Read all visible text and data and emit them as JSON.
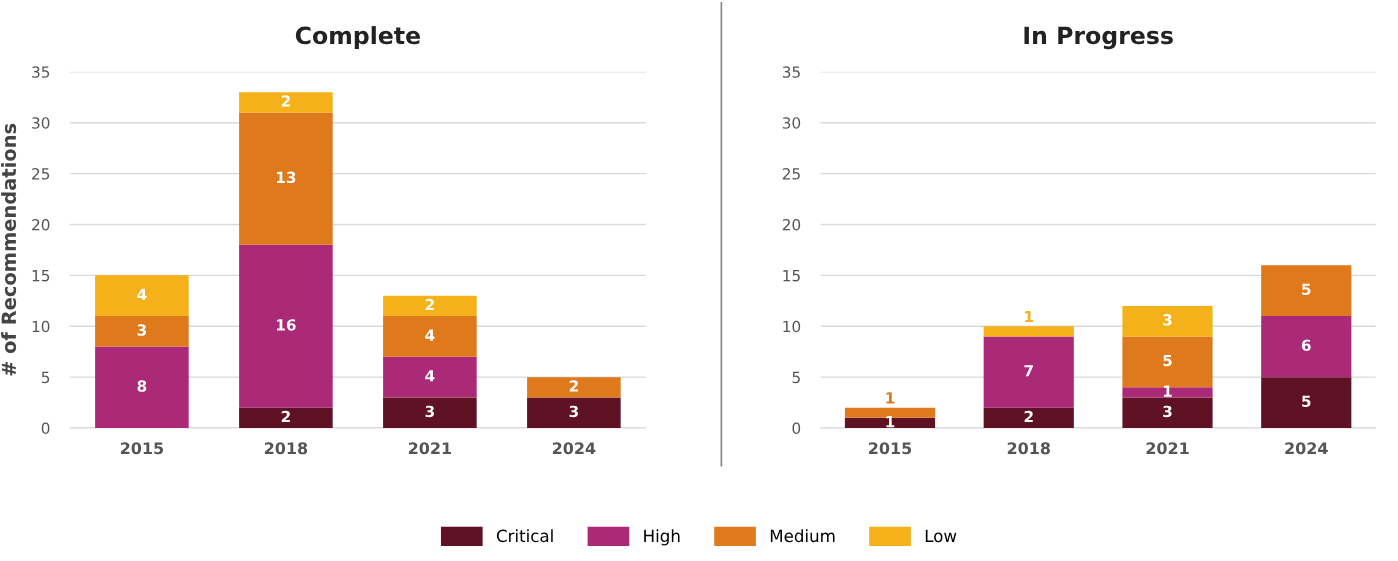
{
  "chart_data": [
    {
      "type": "bar",
      "stacked": true,
      "title": "Complete",
      "ylabel": "# of Recommendations",
      "categories": [
        "2015",
        "2018",
        "2021",
        "2024"
      ],
      "ylim": [
        0,
        35
      ],
      "yticks": [
        0,
        5,
        10,
        15,
        20,
        25,
        30,
        35
      ],
      "grid": "y",
      "data_labels": true,
      "legend": "bottom",
      "series": [
        {
          "name": "Critical",
          "color": "#5e1224",
          "values": [
            null,
            2,
            3,
            3
          ]
        },
        {
          "name": "High",
          "color": "#ab2a78",
          "values": [
            8,
            16,
            4,
            null
          ]
        },
        {
          "name": "Medium",
          "color": "#de7a1c",
          "values": [
            3,
            13,
            4,
            2
          ]
        },
        {
          "name": "Low",
          "color": "#f5b11a",
          "values": [
            4,
            2,
            2,
            null
          ]
        }
      ]
    },
    {
      "type": "bar",
      "stacked": true,
      "title": "In Progress",
      "categories": [
        "2015",
        "2018",
        "2021",
        "2024"
      ],
      "ylim": [
        0,
        35
      ],
      "yticks": [
        0,
        5,
        10,
        15,
        20,
        25,
        30,
        35
      ],
      "grid": "y",
      "data_labels": true,
      "legend": "bottom",
      "series": [
        {
          "name": "Critical",
          "color": "#5e1224",
          "values": [
            1,
            2,
            3,
            5
          ]
        },
        {
          "name": "High",
          "color": "#ab2a78",
          "values": [
            null,
            7,
            1,
            6
          ]
        },
        {
          "name": "Medium",
          "color": "#de7a1c",
          "values": [
            1,
            null,
            5,
            5
          ]
        },
        {
          "name": "Low",
          "color": "#f5b11a",
          "values": [
            null,
            1,
            3,
            null
          ]
        }
      ]
    }
  ]
}
